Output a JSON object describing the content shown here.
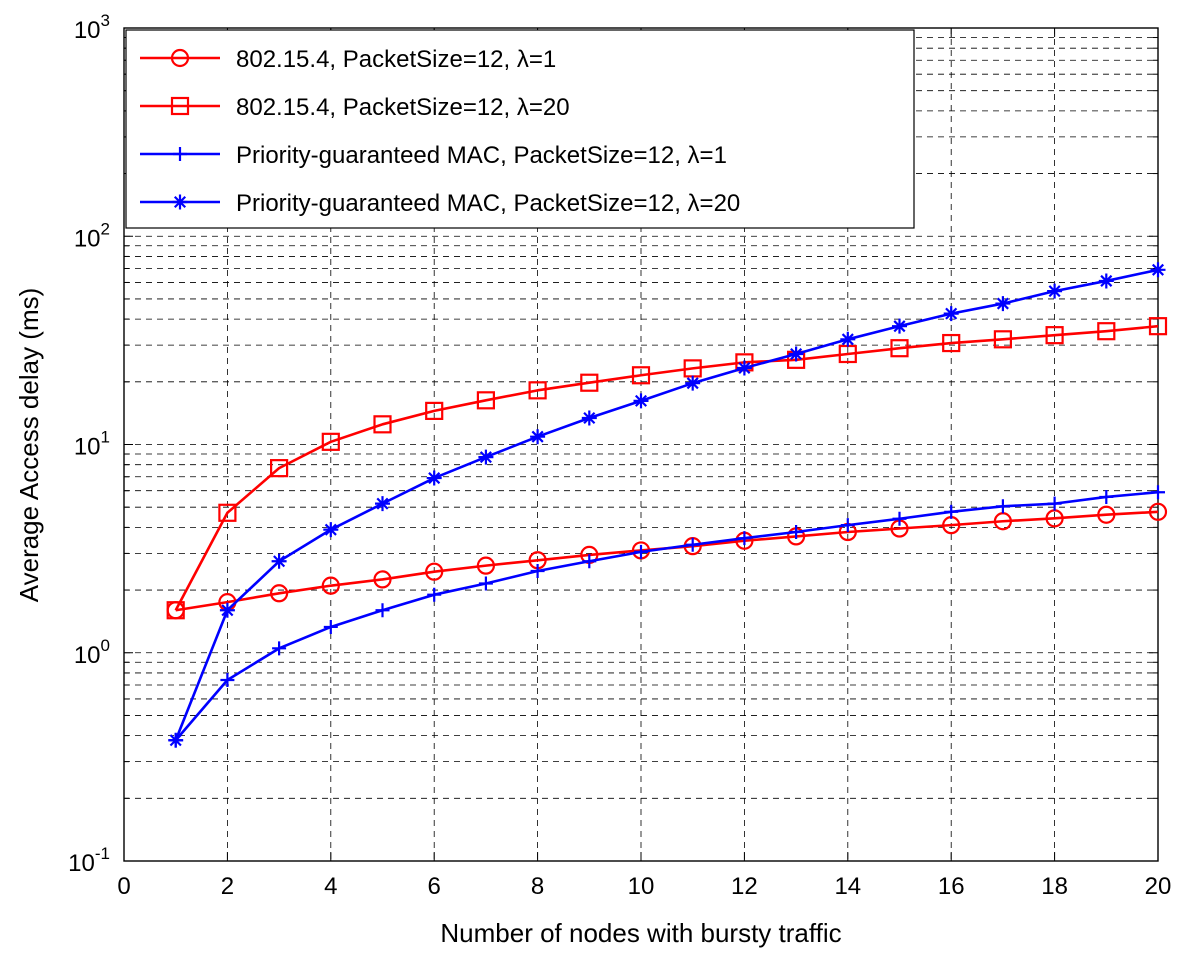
{
  "chart_data": {
    "type": "line",
    "title": "",
    "xlabel": "Number of nodes with bursty traffic",
    "ylabel": "Average Access delay (ms)",
    "xlim": [
      0,
      20
    ],
    "ylim": [
      0.1,
      1000
    ],
    "yscale": "log",
    "grid": true,
    "legend_position": "top-left",
    "x_ticks": [
      "0",
      "2",
      "4",
      "6",
      "8",
      "10",
      "12",
      "14",
      "16",
      "18",
      "20"
    ],
    "y_ticks": [
      {
        "base": "10",
        "exp": "-1"
      },
      {
        "base": "10",
        "exp": "0"
      },
      {
        "base": "10",
        "exp": "1"
      },
      {
        "base": "10",
        "exp": "2"
      },
      {
        "base": "10",
        "exp": "3"
      }
    ],
    "x": [
      1,
      2,
      3,
      4,
      5,
      6,
      7,
      8,
      9,
      10,
      11,
      12,
      13,
      14,
      15,
      16,
      17,
      18,
      19,
      20
    ],
    "series": [
      {
        "name": "802.15.4, PacketSize=12, λ=1",
        "color": "#ff0000",
        "marker": "circle",
        "values": [
          1.6,
          1.75,
          1.93,
          2.1,
          2.25,
          2.45,
          2.62,
          2.78,
          2.95,
          3.1,
          3.25,
          3.45,
          3.62,
          3.8,
          3.95,
          4.1,
          4.28,
          4.42,
          4.6,
          4.75
        ]
      },
      {
        "name": "802.15.4, PacketSize=12, λ=20",
        "color": "#ff0000",
        "marker": "square",
        "values": [
          1.6,
          4.7,
          7.7,
          10.3,
          12.5,
          14.5,
          16.3,
          18.2,
          19.8,
          21.5,
          23.2,
          24.8,
          25.5,
          27.2,
          29.0,
          30.7,
          32.0,
          33.5,
          35.0,
          37.0
        ]
      },
      {
        "name": "Priority-guaranteed MAC, PacketSize=12, λ=1",
        "color": "#0000ff",
        "marker": "plus",
        "values": [
          0.38,
          0.74,
          1.05,
          1.33,
          1.6,
          1.9,
          2.15,
          2.47,
          2.75,
          3.05,
          3.3,
          3.55,
          3.8,
          4.1,
          4.4,
          4.75,
          5.05,
          5.2,
          5.6,
          5.9
        ]
      },
      {
        "name": "Priority-guaranteed MAC, PacketSize=12, λ=20",
        "color": "#0000ff",
        "marker": "star",
        "values": [
          0.38,
          1.6,
          2.75,
          3.9,
          5.2,
          6.9,
          8.7,
          10.9,
          13.4,
          16.2,
          19.7,
          23.3,
          27.2,
          32.0,
          37.0,
          42.5,
          47.5,
          54.5,
          61.0,
          69.0
        ]
      }
    ]
  }
}
